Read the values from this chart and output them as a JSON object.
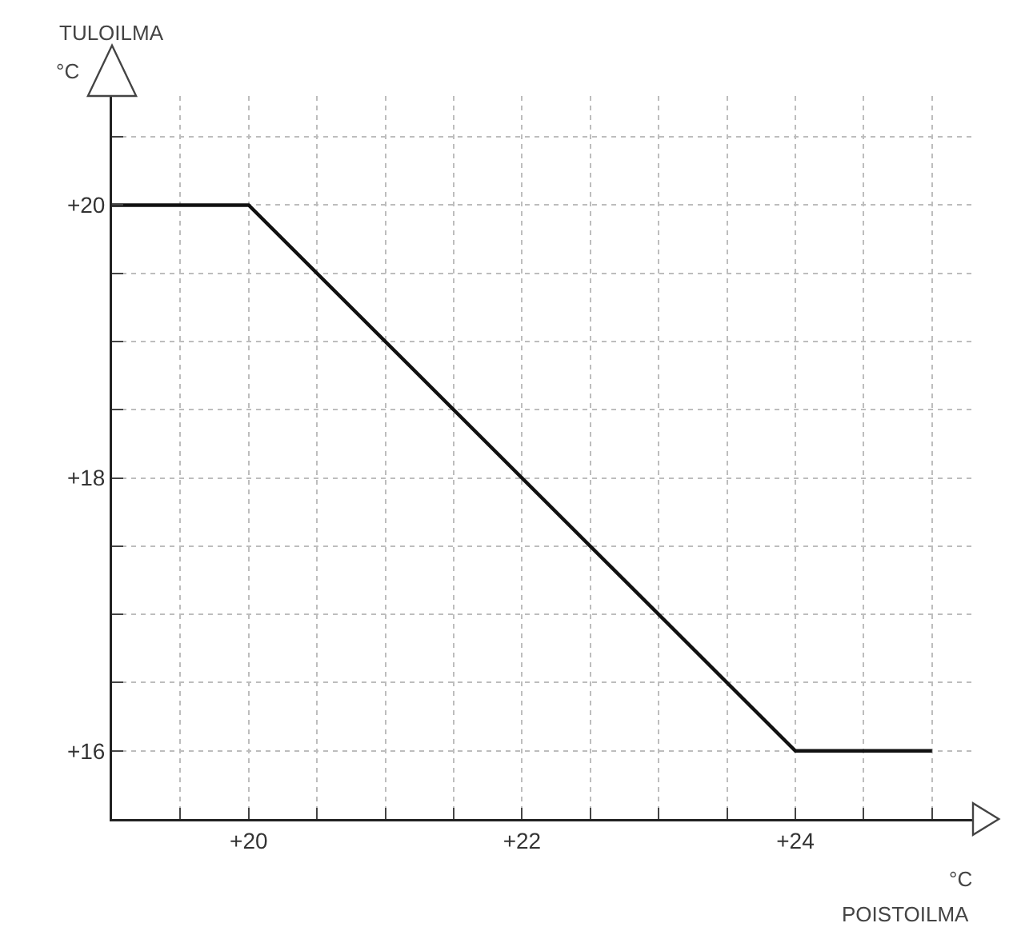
{
  "chart_data": {
    "type": "line",
    "ylabel": "TULOILMA",
    "xlabel": "POISTOILMA",
    "annotations": [
      "°C",
      "°C"
    ],
    "x": [
      19,
      20,
      24,
      25
    ],
    "series": [
      {
        "color": "#111111",
        "values": [
          20,
          20,
          16,
          16
        ]
      }
    ],
    "xlim": [
      19,
      25.3
    ],
    "ylim": [
      15.5,
      20.8
    ],
    "xticks": [
      {
        "value": 19.5,
        "label": null
      },
      {
        "value": 20,
        "label": "+20"
      },
      {
        "value": 20.5,
        "label": null
      },
      {
        "value": 21,
        "label": null
      },
      {
        "value": 21.5,
        "label": null
      },
      {
        "value": 22,
        "label": "+22"
      },
      {
        "value": 22.5,
        "label": null
      },
      {
        "value": 23,
        "label": null
      },
      {
        "value": 23.5,
        "label": null
      },
      {
        "value": 24,
        "label": "+24"
      },
      {
        "value": 24.5,
        "label": null
      },
      {
        "value": 25,
        "label": null
      }
    ],
    "yticks": [
      {
        "value": 16,
        "label": "+16"
      },
      {
        "value": 16.5,
        "label": null
      },
      {
        "value": 17,
        "label": null
      },
      {
        "value": 17.5,
        "label": null
      },
      {
        "value": 18,
        "label": "+18"
      },
      {
        "value": 18.5,
        "label": null
      },
      {
        "value": 19,
        "label": null
      },
      {
        "value": 19.5,
        "label": null
      },
      {
        "value": 20,
        "label": "+20"
      },
      {
        "value": 20.5,
        "label": null
      }
    ],
    "grid": true,
    "line_style": "solid",
    "marker": "none"
  }
}
